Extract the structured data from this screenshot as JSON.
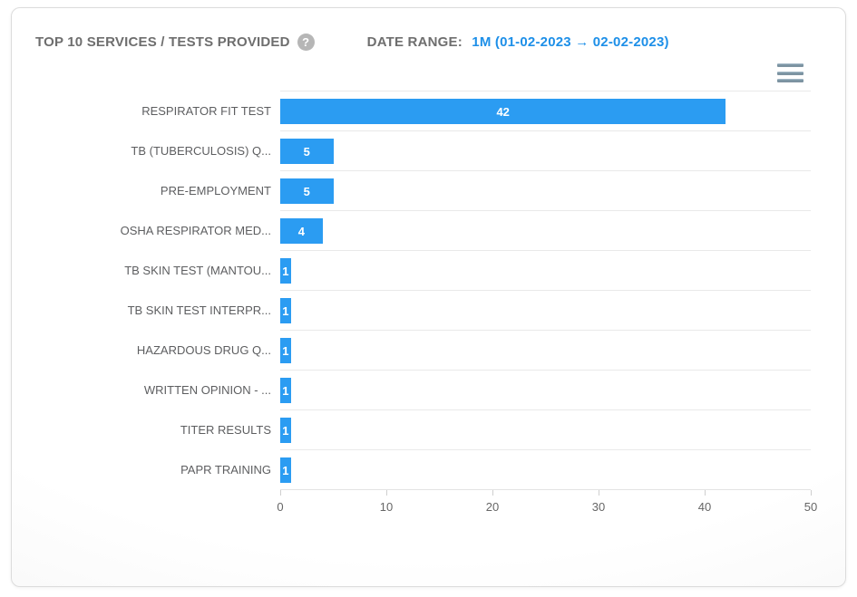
{
  "header": {
    "title": "TOP 10 SERVICES / TESTS PROVIDED",
    "help_icon_glyph": "?",
    "date_range_label": "DATE RANGE:",
    "date_range_value": "1M (01-02-2023 → 02-02-2023)"
  },
  "toolbar": {
    "menu_icon": "hamburger-menu"
  },
  "colors": {
    "bar": "#2b9cf2",
    "date_range_value": "#1d8fe8",
    "title_text": "#6e6e6e",
    "category_text": "#5d5e60",
    "axis_text": "#666666",
    "gridline": "#e9e9e9"
  },
  "chart_data": {
    "type": "bar",
    "orientation": "horizontal",
    "title": "TOP 10 SERVICES / TESTS PROVIDED",
    "categories": [
      "RESPIRATOR FIT TEST",
      "TB (TUBERCULOSIS) Q...",
      "PRE-EMPLOYMENT",
      "OSHA RESPIRATOR MED...",
      "TB SKIN TEST (MANTOU...",
      "TB SKIN TEST INTERPR...",
      "HAZARDOUS DRUG Q...",
      "WRITTEN OPINION - ...",
      "TITER RESULTS",
      "PAPR TRAINING"
    ],
    "values": [
      42,
      5,
      5,
      4,
      1,
      1,
      1,
      1,
      1,
      1
    ],
    "xlabel": "",
    "ylabel": "",
    "xlim": [
      0,
      50
    ],
    "x_ticks": [
      0,
      10,
      20,
      30,
      40,
      50
    ],
    "grid": "category-separator-lines",
    "bar_labels": "inside-center-white",
    "legend": "none"
  }
}
